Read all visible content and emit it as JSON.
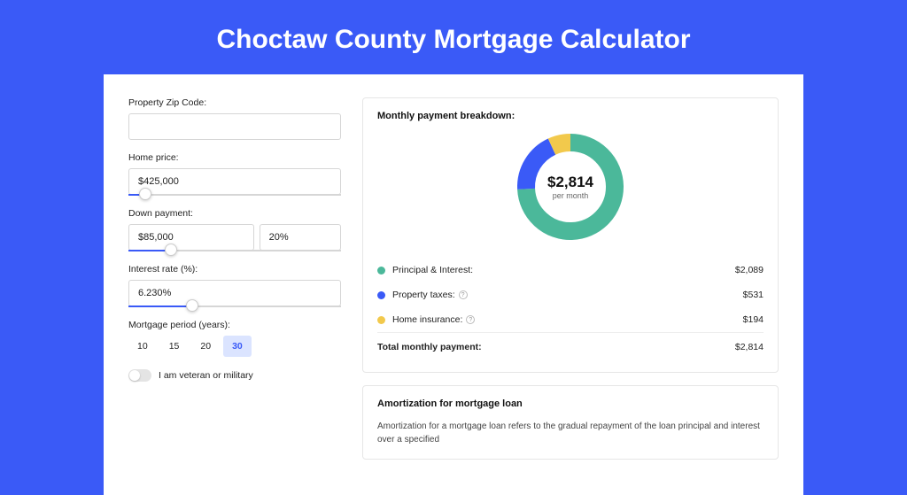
{
  "title": "Choctaw County Mortgage Calculator",
  "colors": {
    "page_bg": "#3a5af7",
    "card_bg": "#ffffff",
    "accent": "#3a5af7",
    "series_pi": "#4bb89a",
    "series_tax": "#3a5af7",
    "series_ins": "#f2c94c"
  },
  "form": {
    "zip": {
      "label": "Property Zip Code:",
      "value": ""
    },
    "home_price": {
      "label": "Home price:",
      "value": "$425,000",
      "slider_pct": 8
    },
    "down_payment": {
      "label": "Down payment:",
      "amount": "$85,000",
      "percent": "20%",
      "slider_pct": 20
    },
    "interest_rate": {
      "label": "Interest rate (%):",
      "value": "6.230%",
      "slider_pct": 30
    },
    "period": {
      "label": "Mortgage period (years):",
      "options": [
        "10",
        "15",
        "20",
        "30"
      ],
      "selected": "30"
    },
    "veteran": {
      "label": "I am veteran or military",
      "checked": false
    }
  },
  "breakdown": {
    "title": "Monthly payment breakdown:",
    "donut": {
      "type": "donut",
      "amount": "$2,814",
      "sub": "per month",
      "segments": [
        {
          "key": "pi",
          "value": 2089,
          "color": "#4bb89a"
        },
        {
          "key": "tax",
          "value": 531,
          "color": "#3a5af7"
        },
        {
          "key": "ins",
          "value": 194,
          "color": "#f2c94c"
        }
      ],
      "inner_radius": 40,
      "outer_radius": 60
    },
    "rows": [
      {
        "label": "Principal & Interest:",
        "value": "$2,089",
        "dot": "#4bb89a",
        "info": false
      },
      {
        "label": "Property taxes:",
        "value": "$531",
        "dot": "#3a5af7",
        "info": true
      },
      {
        "label": "Home insurance:",
        "value": "$194",
        "dot": "#f2c94c",
        "info": true
      }
    ],
    "total": {
      "label": "Total monthly payment:",
      "value": "$2,814"
    }
  },
  "amortization": {
    "title": "Amortization for mortgage loan",
    "text": "Amortization for a mortgage loan refers to the gradual repayment of the loan principal and interest over a specified"
  }
}
